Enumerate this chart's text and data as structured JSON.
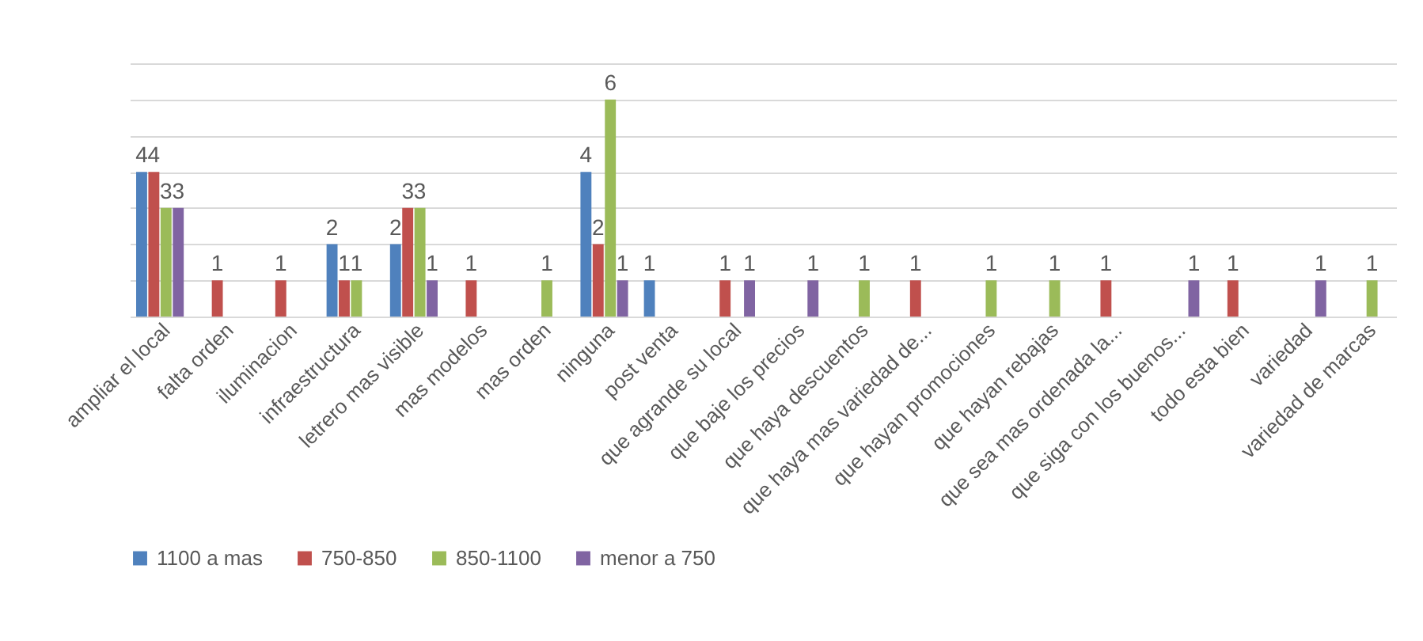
{
  "chart_data": {
    "type": "bar",
    "categories": [
      "ampliar el local",
      "falta orden",
      "iluminacion",
      "infraestructura",
      "letrero mas visible",
      "mas modelos",
      "mas orden",
      "ninguna",
      "post venta",
      "que agrande su local",
      "que baje los precios",
      "que haya descuentos",
      "que haya mas variedad de...",
      "que hayan promociones",
      "que hayan rebajas",
      "que sea mas ordenada la...",
      "que siga con los buenos...",
      "todo esta bien",
      "variedad",
      "variedad de marcas"
    ],
    "series": [
      {
        "name": "1100 a mas",
        "color": "#4f81bd",
        "values": [
          4,
          null,
          null,
          2,
          2,
          null,
          null,
          4,
          1,
          null,
          null,
          null,
          null,
          null,
          null,
          null,
          null,
          null,
          null,
          null
        ]
      },
      {
        "name": "750-850",
        "color": "#c0504d",
        "values": [
          4,
          1,
          1,
          1,
          3,
          1,
          null,
          2,
          null,
          1,
          null,
          null,
          1,
          null,
          null,
          1,
          null,
          1,
          null,
          null
        ]
      },
      {
        "name": "850-1100",
        "color": "#9bbb59",
        "values": [
          3,
          null,
          null,
          1,
          3,
          null,
          1,
          6,
          null,
          null,
          null,
          1,
          null,
          1,
          1,
          null,
          null,
          null,
          null,
          1
        ]
      },
      {
        "name": "menor a 750",
        "color": "#8064a2",
        "values": [
          3,
          null,
          null,
          null,
          1,
          null,
          null,
          1,
          null,
          1,
          1,
          null,
          null,
          null,
          null,
          null,
          1,
          null,
          1,
          null
        ]
      }
    ],
    "ylim": [
      0,
      7
    ],
    "yticks": [
      {
        "value": 0,
        "label": null
      },
      {
        "value": 1,
        "label": null
      },
      {
        "value": 2,
        "label": null
      },
      {
        "value": 3,
        "label": null
      },
      {
        "value": 4,
        "label": null
      },
      {
        "value": 5,
        "label": null
      },
      {
        "value": 6,
        "label": null
      },
      {
        "value": 7,
        "label": null
      }
    ],
    "grid": "y",
    "tick_labels": "x",
    "data_labels": true,
    "legend": "bottom"
  }
}
